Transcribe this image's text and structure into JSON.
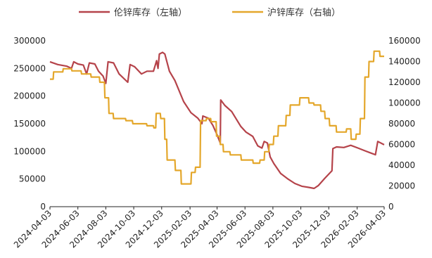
{
  "chart_data": {
    "type": "line",
    "title": "",
    "legend": {
      "placement": "top-center"
    },
    "colors": {
      "lme": "#B5434A",
      "shfe": "#E4A72B",
      "axis": "#222222"
    },
    "x_axis": {
      "type": "date",
      "range": [
        "2024-04-03",
        "2026-04-03"
      ],
      "tick_labels": [
        "2024-04-03",
        "2024-06-03",
        "2024-08-03",
        "2024-10-03",
        "2024-12-03",
        "2025-02-03",
        "2025-04-03",
        "2025-06-03",
        "2025-08-03",
        "2025-10-03",
        "2025-12-03",
        "2026-02-03",
        "2026-04-03"
      ]
    },
    "y_axis_left": {
      "range": [
        0,
        300000
      ],
      "tick_labels": [
        "0",
        "50000",
        "100000",
        "150000",
        "200000",
        "250000",
        "300000"
      ]
    },
    "y_axis_right": {
      "range": [
        0,
        160000
      ],
      "tick_labels": [
        "0",
        "20000",
        "40000",
        "60000",
        "80000",
        "100000",
        "120000",
        "140000",
        "160000"
      ]
    },
    "grid": false,
    "series": [
      {
        "name": "伦锌库存（左轴）",
        "axis": "left",
        "color": "#B5434A",
        "points": [
          [
            "2024-04-03",
            262000
          ],
          [
            "2024-04-20",
            257000
          ],
          [
            "2024-05-10",
            254000
          ],
          [
            "2024-05-20",
            250000
          ],
          [
            "2024-05-25",
            262000
          ],
          [
            "2024-06-03",
            258000
          ],
          [
            "2024-06-15",
            256000
          ],
          [
            "2024-06-22",
            240000
          ],
          [
            "2024-06-28",
            260000
          ],
          [
            "2024-07-10",
            258000
          ],
          [
            "2024-07-18",
            245000
          ],
          [
            "2024-07-28",
            236000
          ],
          [
            "2024-08-03",
            223000
          ],
          [
            "2024-08-08",
            262000
          ],
          [
            "2024-08-20",
            260000
          ],
          [
            "2024-09-01",
            240000
          ],
          [
            "2024-09-20",
            225000
          ],
          [
            "2024-09-25",
            257000
          ],
          [
            "2024-10-05",
            253000
          ],
          [
            "2024-10-20",
            240000
          ],
          [
            "2024-11-01",
            245000
          ],
          [
            "2024-11-15",
            245000
          ],
          [
            "2024-11-22",
            264000
          ],
          [
            "2024-11-25",
            250000
          ],
          [
            "2024-11-28",
            276000
          ],
          [
            "2024-12-05",
            279000
          ],
          [
            "2024-12-10",
            276000
          ],
          [
            "2024-12-20",
            245000
          ],
          [
            "2025-01-01",
            228000
          ],
          [
            "2025-01-20",
            190000
          ],
          [
            "2025-02-05",
            170000
          ],
          [
            "2025-02-20",
            160000
          ],
          [
            "2025-03-01",
            150000
          ],
          [
            "2025-03-03",
            164000
          ],
          [
            "2025-03-15",
            160000
          ],
          [
            "2025-03-25",
            147000
          ],
          [
            "2025-04-03",
            130000
          ],
          [
            "2025-04-10",
            115000
          ],
          [
            "2025-04-11",
            193000
          ],
          [
            "2025-04-20",
            183000
          ],
          [
            "2025-05-05",
            172000
          ],
          [
            "2025-05-25",
            145000
          ],
          [
            "2025-06-05",
            135000
          ],
          [
            "2025-06-20",
            127000
          ],
          [
            "2025-07-01",
            110000
          ],
          [
            "2025-07-10",
            106000
          ],
          [
            "2025-07-15",
            118000
          ],
          [
            "2025-07-22",
            115000
          ],
          [
            "2025-07-28",
            90000
          ],
          [
            "2025-08-05",
            78000
          ],
          [
            "2025-08-20",
            60000
          ],
          [
            "2025-09-05",
            50000
          ],
          [
            "2025-09-20",
            42000
          ],
          [
            "2025-10-05",
            37000
          ],
          [
            "2025-10-20",
            35000
          ],
          [
            "2025-11-01",
            33000
          ],
          [
            "2025-11-10",
            38000
          ],
          [
            "2025-11-25",
            52000
          ],
          [
            "2025-12-10",
            65000
          ],
          [
            "2025-12-12",
            105000
          ],
          [
            "2025-12-20",
            108000
          ],
          [
            "2026-01-05",
            107000
          ],
          [
            "2026-01-20",
            111000
          ],
          [
            "2026-02-05",
            106000
          ],
          [
            "2026-02-20",
            101000
          ],
          [
            "2026-03-05",
            97000
          ],
          [
            "2026-03-15",
            94000
          ],
          [
            "2026-03-20",
            118000
          ],
          [
            "2026-04-03",
            112000
          ]
        ]
      },
      {
        "name": "沪锌库存（右轴）",
        "axis": "right",
        "color": "#E4A72B",
        "points": [
          [
            "2024-04-03",
            123000
          ],
          [
            "2024-04-10",
            123000
          ],
          [
            "2024-04-11",
            130000
          ],
          [
            "2024-05-01",
            130000
          ],
          [
            "2024-05-02",
            133000
          ],
          [
            "2024-05-20",
            133000
          ],
          [
            "2024-05-21",
            131000
          ],
          [
            "2024-06-10",
            131000
          ],
          [
            "2024-06-11",
            128000
          ],
          [
            "2024-07-01",
            128000
          ],
          [
            "2024-07-02",
            125000
          ],
          [
            "2024-07-20",
            125000
          ],
          [
            "2024-07-21",
            120000
          ],
          [
            "2024-07-31",
            120000
          ],
          [
            "2024-08-01",
            105000
          ],
          [
            "2024-08-09",
            105000
          ],
          [
            "2024-08-10",
            90000
          ],
          [
            "2024-08-19",
            90000
          ],
          [
            "2024-08-20",
            85000
          ],
          [
            "2024-09-15",
            85000
          ],
          [
            "2024-09-16",
            83000
          ],
          [
            "2024-09-30",
            83000
          ],
          [
            "2024-10-01",
            80000
          ],
          [
            "2024-10-31",
            80000
          ],
          [
            "2024-11-01",
            78000
          ],
          [
            "2024-11-15",
            78000
          ],
          [
            "2024-11-16",
            76000
          ],
          [
            "2024-11-20",
            76000
          ],
          [
            "2024-11-21",
            90000
          ],
          [
            "2024-11-30",
            90000
          ],
          [
            "2024-12-01",
            85000
          ],
          [
            "2024-12-09",
            85000
          ],
          [
            "2024-12-10",
            65000
          ],
          [
            "2024-12-14",
            65000
          ],
          [
            "2024-12-15",
            45000
          ],
          [
            "2025-01-01",
            45000
          ],
          [
            "2025-01-02",
            35000
          ],
          [
            "2025-01-14",
            35000
          ],
          [
            "2025-01-15",
            22000
          ],
          [
            "2025-02-05",
            22000
          ],
          [
            "2025-02-06",
            33000
          ],
          [
            "2025-02-14",
            33000
          ],
          [
            "2025-02-15",
            38000
          ],
          [
            "2025-02-25",
            38000
          ],
          [
            "2025-02-26",
            83000
          ],
          [
            "2025-03-10",
            83000
          ],
          [
            "2025-03-11",
            85000
          ],
          [
            "2025-03-20",
            85000
          ],
          [
            "2025-03-21",
            82000
          ],
          [
            "2025-04-01",
            82000
          ],
          [
            "2025-04-02",
            68000
          ],
          [
            "2025-04-09",
            68000
          ],
          [
            "2025-04-10",
            60000
          ],
          [
            "2025-04-16",
            60000
          ],
          [
            "2025-04-17",
            53000
          ],
          [
            "2025-05-01",
            53000
          ],
          [
            "2025-05-02",
            50000
          ],
          [
            "2025-05-25",
            50000
          ],
          [
            "2025-05-26",
            45000
          ],
          [
            "2025-06-20",
            45000
          ],
          [
            "2025-06-21",
            42000
          ],
          [
            "2025-07-05",
            42000
          ],
          [
            "2025-07-06",
            45000
          ],
          [
            "2025-07-15",
            45000
          ],
          [
            "2025-07-16",
            53000
          ],
          [
            "2025-07-25",
            53000
          ],
          [
            "2025-07-26",
            60000
          ],
          [
            "2025-08-04",
            60000
          ],
          [
            "2025-08-05",
            68000
          ],
          [
            "2025-08-14",
            68000
          ],
          [
            "2025-08-15",
            78000
          ],
          [
            "2025-08-31",
            78000
          ],
          [
            "2025-09-01",
            88000
          ],
          [
            "2025-09-09",
            88000
          ],
          [
            "2025-09-10",
            98000
          ],
          [
            "2025-09-30",
            98000
          ],
          [
            "2025-10-01",
            105000
          ],
          [
            "2025-10-20",
            105000
          ],
          [
            "2025-10-21",
            100000
          ],
          [
            "2025-10-31",
            100000
          ],
          [
            "2025-11-01",
            98000
          ],
          [
            "2025-11-15",
            98000
          ],
          [
            "2025-11-16",
            92000
          ],
          [
            "2025-11-24",
            92000
          ],
          [
            "2025-11-25",
            85000
          ],
          [
            "2025-12-04",
            85000
          ],
          [
            "2025-12-05",
            78000
          ],
          [
            "2025-12-19",
            78000
          ],
          [
            "2025-12-20",
            72000
          ],
          [
            "2026-01-10",
            72000
          ],
          [
            "2026-01-11",
            75000
          ],
          [
            "2026-01-20",
            75000
          ],
          [
            "2026-01-21",
            65000
          ],
          [
            "2026-01-31",
            65000
          ],
          [
            "2026-02-01",
            70000
          ],
          [
            "2026-02-09",
            70000
          ],
          [
            "2026-02-10",
            85000
          ],
          [
            "2026-02-19",
            85000
          ],
          [
            "2026-02-20",
            125000
          ],
          [
            "2026-02-28",
            125000
          ],
          [
            "2026-03-01",
            140000
          ],
          [
            "2026-03-11",
            140000
          ],
          [
            "2026-03-12",
            150000
          ],
          [
            "2026-03-24",
            150000
          ],
          [
            "2026-03-25",
            145000
          ],
          [
            "2026-04-03",
            145000
          ]
        ]
      }
    ]
  }
}
